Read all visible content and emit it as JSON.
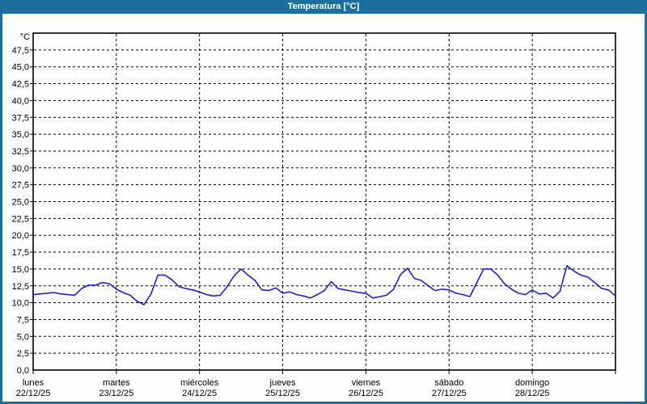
{
  "window": {
    "title": "Temperatura [°C]",
    "colors": {
      "titlebar": "#1d6e9d",
      "border": "#1d6e9d",
      "background": "#fdfefd",
      "plot_frame": "#000000",
      "grid": "#000000"
    }
  },
  "chart_data": {
    "type": "line",
    "title": "Temperatura [°C]",
    "y_unit": "°C",
    "ylim": [
      0,
      50
    ],
    "y_tick_step": 2.5,
    "y_tick_labels": [
      "0,0",
      "2,5",
      "5,0",
      "7,5",
      "10,0",
      "12,5",
      "15,0",
      "17,5",
      "20,0",
      "22,5",
      "25,0",
      "27,5",
      "30,0",
      "32,5",
      "35,0",
      "37,5",
      "40,0",
      "42,5",
      "45,0",
      "47,5"
    ],
    "x_ticks": [
      {
        "day": "lunes",
        "date": "22/12/25"
      },
      {
        "day": "martes",
        "date": "23/12/25"
      },
      {
        "day": "miércoles",
        "date": "24/12/25"
      },
      {
        "day": "jueves",
        "date": "25/12/25"
      },
      {
        "day": "viernes",
        "date": "26/12/25"
      },
      {
        "day": "sábado",
        "date": "27/12/25"
      },
      {
        "day": "domingo",
        "date": "28/12/25"
      }
    ],
    "x_range_hours": [
      0,
      168
    ],
    "sample_interval_hours": 2,
    "grid": "dashed",
    "legend": "none",
    "series": [
      {
        "name": "Temperatura",
        "unit": "°C",
        "color": "#2121c8",
        "values": [
          11.2,
          11.3,
          11.4,
          11.5,
          11.3,
          11.2,
          11.1,
          12.1,
          12.6,
          12.6,
          13.0,
          12.8,
          12.0,
          11.5,
          11.1,
          10.2,
          9.7,
          11.3,
          14.1,
          14.1,
          13.4,
          12.4,
          12.1,
          11.9,
          11.6,
          11.2,
          11.0,
          11.1,
          12.4,
          14.0,
          15.0,
          14.1,
          13.3,
          11.9,
          11.8,
          12.2,
          11.4,
          11.6,
          11.2,
          11.0,
          10.7,
          11.2,
          11.8,
          13.1,
          12.1,
          11.9,
          11.7,
          11.5,
          11.4,
          10.7,
          10.9,
          11.1,
          12.0,
          14.2,
          15.1,
          13.6,
          13.3,
          12.5,
          11.8,
          12.0,
          11.9,
          11.4,
          11.2,
          10.9,
          13.0,
          15.0,
          15.0,
          14.1,
          12.8,
          12.0,
          11.4,
          11.2,
          11.9,
          11.3,
          11.4,
          10.7,
          11.7,
          15.5,
          14.7,
          14.1,
          13.8,
          13.0,
          12.1,
          11.9,
          11.0
        ]
      }
    ]
  }
}
